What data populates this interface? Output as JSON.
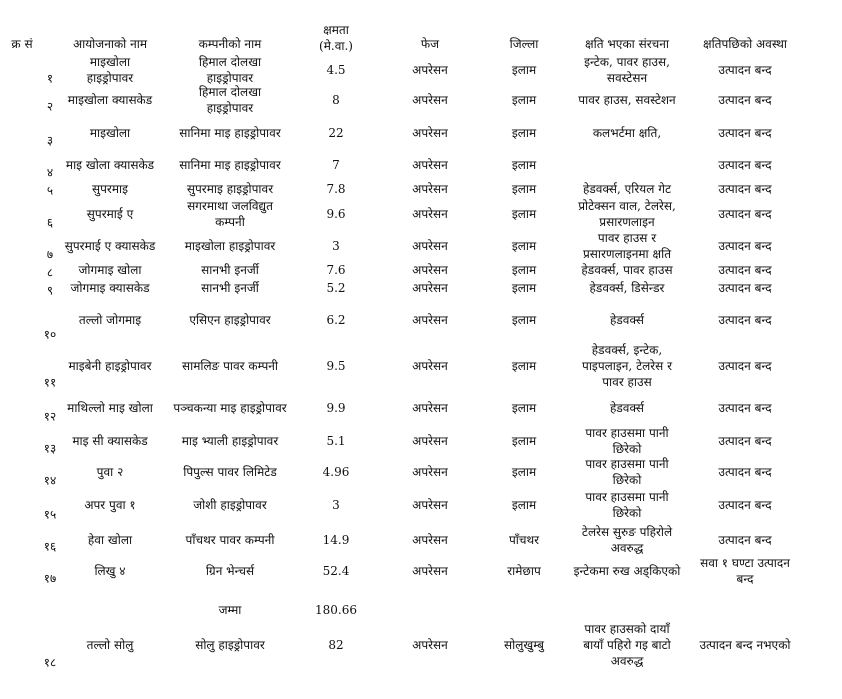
{
  "header": {
    "sn": "क्र सं",
    "project": "आयोजनाको नाम",
    "company": "कम्पनीको नाम",
    "capacity": "क्षमता\n(मे.वा.)",
    "phase": "फेज",
    "district": "जिल्ला",
    "damage": "क्षति भएका संरचना",
    "status": "क्षतिपछिको अवस्था"
  },
  "rows": [
    {
      "sn": "१",
      "project": "माइखोला\nहाइड्रोपावर",
      "company": "हिमाल दोलखा\nहाइड्रोपावर",
      "capacity": "4.5",
      "phase": "अपरेसन",
      "district": "इलाम",
      "damage": "इन्टेक, पावर हाउस,\nसवस्टेसन",
      "status": "उत्पादन बन्द"
    },
    {
      "sn": "२",
      "project": "माइखोला क्यासकेड",
      "company": "हिमाल दोलखा\nहाइड्रोपावर",
      "capacity": "8",
      "phase": "अपरेसन",
      "district": "इलाम",
      "damage": "पावर हाउस, सवस्टेशन",
      "status": "उत्पादन बन्द"
    },
    {
      "sn": "३",
      "project": "माइखोला",
      "company": "सानिमा माइ हाइड्रोपावर",
      "capacity": "22",
      "phase": "अपरेसन",
      "district": "इलाम",
      "damage": "कलभर्टमा क्षति,",
      "status": "उत्पादन बन्द"
    },
    {
      "sn": "४",
      "project": "माइ खोला क्यासकेड",
      "company": "सानिमा माइ हाइड्रोपावर",
      "capacity": "7",
      "phase": "अपरेसन",
      "district": "इलाम",
      "damage": "",
      "status": "उत्पादन बन्द"
    },
    {
      "sn": "५",
      "project": "सुपरमाइ",
      "company": "सुपरमाइ हाइड्रोपावर",
      "capacity": "7.8",
      "phase": "अपरेसन",
      "district": "इलाम",
      "damage": "हेडवर्क्स, एरियल गेट",
      "status": "उत्पादन बन्द"
    },
    {
      "sn": "६",
      "project": "सुपरमाई ए",
      "company": "सगरमाथा जलविद्युत\nकम्पनी",
      "capacity": "9.6",
      "phase": "अपरेसन",
      "district": "इलाम",
      "damage": "प्रोटेक्सन वाल, टेलरेस,\nप्रसारणलाइन",
      "status": "उत्पादन बन्द"
    },
    {
      "sn": "७",
      "project": "सुपरमाई ए क्यासकेड",
      "company": "माइखोला हाइड्रोपावर",
      "capacity": "3",
      "phase": "अपरेसन",
      "district": "इलाम",
      "damage": "पावर हाउस र\nप्रसारणलाइनमा क्षति",
      "status": "उत्पादन बन्द"
    },
    {
      "sn": "८",
      "project": "जोगमाइ खोला",
      "company": "सानभी इनर्जी",
      "capacity": "7.6",
      "phase": "अपरेसन",
      "district": "इलाम",
      "damage": "हेडवर्क्स, पावर हाउस",
      "status": "उत्पादन बन्द"
    },
    {
      "sn": "९",
      "project": "जोगमाइ क्यासकेड",
      "company": "सानभी इनर्जी",
      "capacity": "5.2",
      "phase": "अपरेसन",
      "district": "इलाम",
      "damage": "हेडवर्क्स, डिसेन्डर",
      "status": "उत्पादन बन्द"
    },
    {
      "sn": "१०",
      "project": "तल्लो जोगमाइ",
      "company": "एसिएन हाइड्रोपावर",
      "capacity": "6.2",
      "phase": "अपरेसन",
      "district": "इलाम",
      "damage": "हेडवर्क्स",
      "status": "उत्पादन बन्द"
    },
    {
      "sn": "११",
      "project": "माइबेनी हाइड्रोपावर",
      "company": "सामलिङ पावर कम्पनी",
      "capacity": "9.5",
      "phase": "अपरेसन",
      "district": "इलाम",
      "damage": "हेडवर्क्स, इन्टेक,\nपाइपलाइन, टेलरेस र\nपावर हाउस",
      "status": "उत्पादन बन्द"
    },
    {
      "sn": "१२",
      "project": "माथिल्लो माइ खोला",
      "company": "पञ्चकन्या माइ हाइड्रोपावर",
      "capacity": "9.9",
      "phase": "अपरेसन",
      "district": "इलाम",
      "damage": "हेडवर्क्स",
      "status": "उत्पादन बन्द"
    },
    {
      "sn": "१३",
      "project": "माइ सी क्यासकेड",
      "company": "माइ भ्याली हाइड्रोपावर",
      "capacity": "5.1",
      "phase": "अपरेसन",
      "district": "इलाम",
      "damage": "पावर हाउसमा पानी\nछिरेको",
      "status": "उत्पादन बन्द"
    },
    {
      "sn": "१४",
      "project": "पुवा २",
      "company": "पिपुल्स पावर लिमिटेड",
      "capacity": "4.96",
      "phase": "अपरेसन",
      "district": "इलाम",
      "damage": "पावर हाउसमा पानी\nछिरेको",
      "status": "उत्पादन बन्द"
    },
    {
      "sn": "१५",
      "project": "अपर पुवा १",
      "company": "जोशी हाइड्रोपावर",
      "capacity": "3",
      "phase": "अपरेसन",
      "district": "इलाम",
      "damage": "पावर हाउसमा पानी\nछिरेको",
      "status": "उत्पादन बन्द"
    },
    {
      "sn": "१६",
      "project": "हेवा खोला",
      "company": "पाँचथर पावर कम्पनी",
      "capacity": "14.9",
      "phase": "अपरेसन",
      "district": "पाँचथर",
      "damage": "टेलरेस सुरुङ पहिरोले\nअवरुद्ध",
      "status": "उत्पादन बन्द"
    },
    {
      "sn": "१७",
      "project": "लिखु ४",
      "company": "ग्रिन भेन्चर्स",
      "capacity": "52.4",
      "phase": "अपरेसन",
      "district": "रामेछाप",
      "damage": "इन्टेकमा रुख अड्किएको",
      "status": "सवा १ घण्टा उत्पादन\nबन्द"
    },
    {
      "sn": "",
      "project": "",
      "company": "जम्मा",
      "capacity": "180.66",
      "phase": "",
      "district": "",
      "damage": "",
      "status": ""
    },
    {
      "sn": "१८",
      "project": "तल्लो सोलु",
      "company": "सोलु हाइड्रोपावर",
      "capacity": "82",
      "phase": "अपरेसन",
      "district": "सोलुखुम्बु",
      "damage": "पावर हाउसको दायाँ\nबायाँ पहिरो गइ बाटो\nअवरुद्ध",
      "status": "उत्पादन बन्द नभएको"
    }
  ]
}
